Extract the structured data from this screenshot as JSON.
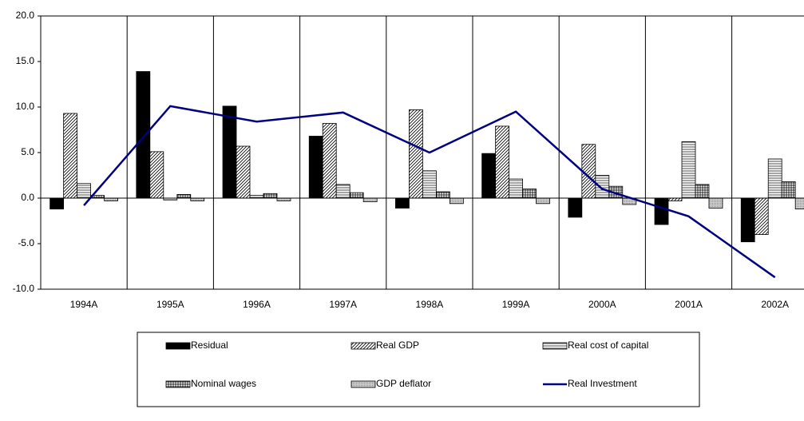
{
  "chart_data": {
    "type": "bar",
    "categories": [
      "1994A",
      "1995A",
      "1996A",
      "1997A",
      "1998A",
      "1999A",
      "2000A",
      "2001A",
      "2002A"
    ],
    "series": [
      {
        "name": "Residual",
        "color": "#000000",
        "pattern": "solid",
        "values": [
          -1.2,
          13.9,
          10.1,
          6.8,
          -1.1,
          4.9,
          -2.1,
          -2.9,
          -4.8
        ]
      },
      {
        "name": "Real GDP",
        "color": "#000000",
        "pattern": "diagonal",
        "values": [
          9.3,
          5.1,
          5.7,
          8.2,
          9.7,
          7.9,
          5.9,
          -0.3,
          -4.0
        ]
      },
      {
        "name": "Real cost of capital",
        "color": "#000000",
        "pattern": "horizontal",
        "values": [
          1.6,
          -0.2,
          0.3,
          1.5,
          3.0,
          2.1,
          2.5,
          6.2,
          4.3
        ]
      },
      {
        "name": "Nominal wages",
        "color": "#000000",
        "pattern": "crosshatch",
        "values": [
          0.3,
          0.4,
          0.5,
          0.6,
          0.7,
          1.0,
          1.3,
          1.5,
          1.8
        ]
      },
      {
        "name": "GDP deflator",
        "color": "#b0b0b0",
        "pattern": "dotted",
        "values": [
          -0.3,
          -0.3,
          -0.3,
          -0.4,
          -0.6,
          -0.6,
          -0.7,
          -1.1,
          -1.2
        ]
      },
      {
        "name": "Real Investment",
        "color": "#000080",
        "type": "line",
        "values": [
          -0.8,
          10.1,
          8.4,
          9.4,
          5.0,
          9.5,
          1.0,
          -2.0,
          -8.7
        ]
      }
    ],
    "ylim": [
      -10,
      20
    ],
    "yticks": [
      {
        "value": -10,
        "label": "-10.0"
      },
      {
        "value": -5,
        "label": "-5.0"
      },
      {
        "value": 0,
        "label": "0.0"
      },
      {
        "value": 5,
        "label": "5.0"
      },
      {
        "value": 10,
        "label": "10.0"
      },
      {
        "value": 15,
        "label": "15.0"
      },
      {
        "value": 20,
        "label": "20.0"
      }
    ],
    "grid": false,
    "legend": "bottom"
  }
}
